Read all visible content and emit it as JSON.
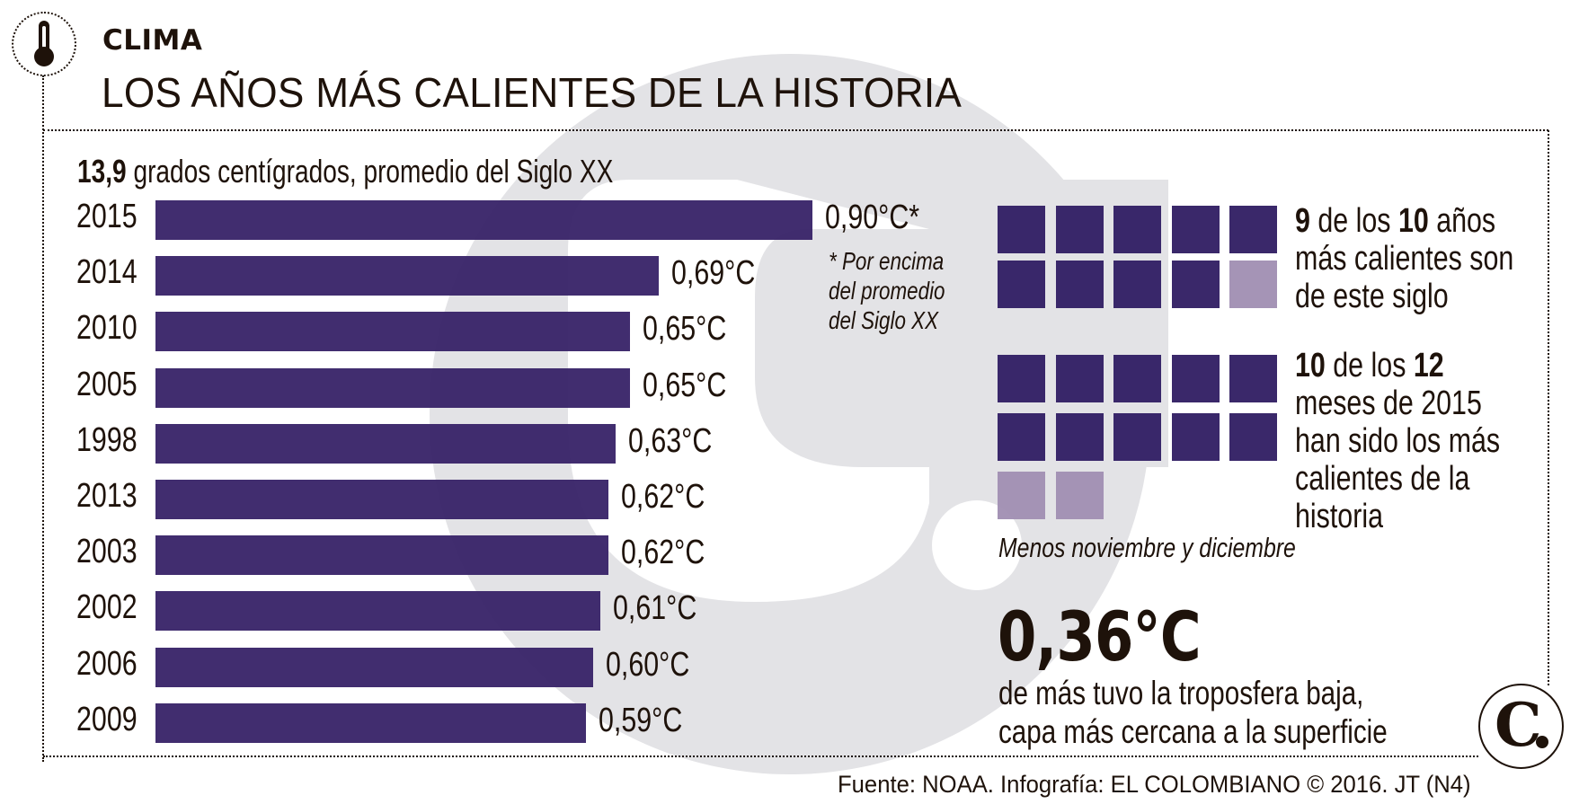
{
  "header": {
    "kicker": "CLIMA",
    "title": "LOS AÑOS MÁS CALIENTES DE LA HISTORIA",
    "icon": "thermometer-icon"
  },
  "subtitle": {
    "bold": "13,9",
    "rest": " grados centígrados, promedio del Siglo XX"
  },
  "chart_data": {
    "type": "bar",
    "orientation": "horizontal",
    "title": "LOS AÑOS MÁS CALIENTES DE LA HISTORIA",
    "subtitle": "13,9 grados centígrados, promedio del Siglo XX",
    "xlabel": "",
    "ylabel": "",
    "unit": "°C above 20th-century average",
    "categories": [
      "2015",
      "2014",
      "2010",
      "2005",
      "1998",
      "2013",
      "2003",
      "2002",
      "2006",
      "2009"
    ],
    "values": [
      0.9,
      0.69,
      0.65,
      0.65,
      0.63,
      0.62,
      0.62,
      0.61,
      0.6,
      0.59
    ],
    "labels": [
      "0,90°C*",
      "0,69°C",
      "0,65°C",
      "0,65°C",
      "0,63°C",
      "0,62°C",
      "0,62°C",
      "0,61°C",
      "0,60°C",
      "0,59°C"
    ],
    "bar_color": "#372267",
    "annotation": "* Por encima del promedio del Siglo XX",
    "grid": false,
    "legend": null
  },
  "footnote": {
    "line1": "* Por encima",
    "line2": "del promedio",
    "line3": "del Siglo XX"
  },
  "stat1": {
    "num1": "9",
    "text1": " de los ",
    "num2": "10",
    "text2": " años",
    "line2": "más calientes son",
    "line3": "de este siglo",
    "squares_filled": 9,
    "squares_total": 10
  },
  "stat2": {
    "num1": "10",
    "text1": " de los ",
    "num2": "12",
    "line2": "meses de 2015",
    "line3": "han sido los más",
    "line4": "calientes de la",
    "line5": "historia",
    "note": "Menos noviembre y diciembre",
    "squares_filled": 10,
    "squares_total": 12
  },
  "stat3": {
    "value": "0,36°C",
    "line1": "de más tuvo la troposfera baja,",
    "line2": "capa más cercana a la superficie"
  },
  "colors": {
    "bar": "#372267",
    "square_on": "#342165",
    "square_off": "#a08eb2",
    "watermark": "#e3e3e6",
    "text": "#1e120a"
  },
  "footer": {
    "credit": "Fuente: NOAA. Infografía: EL COLOMBIANO © 2016. JT (N4)",
    "logo": "C."
  }
}
